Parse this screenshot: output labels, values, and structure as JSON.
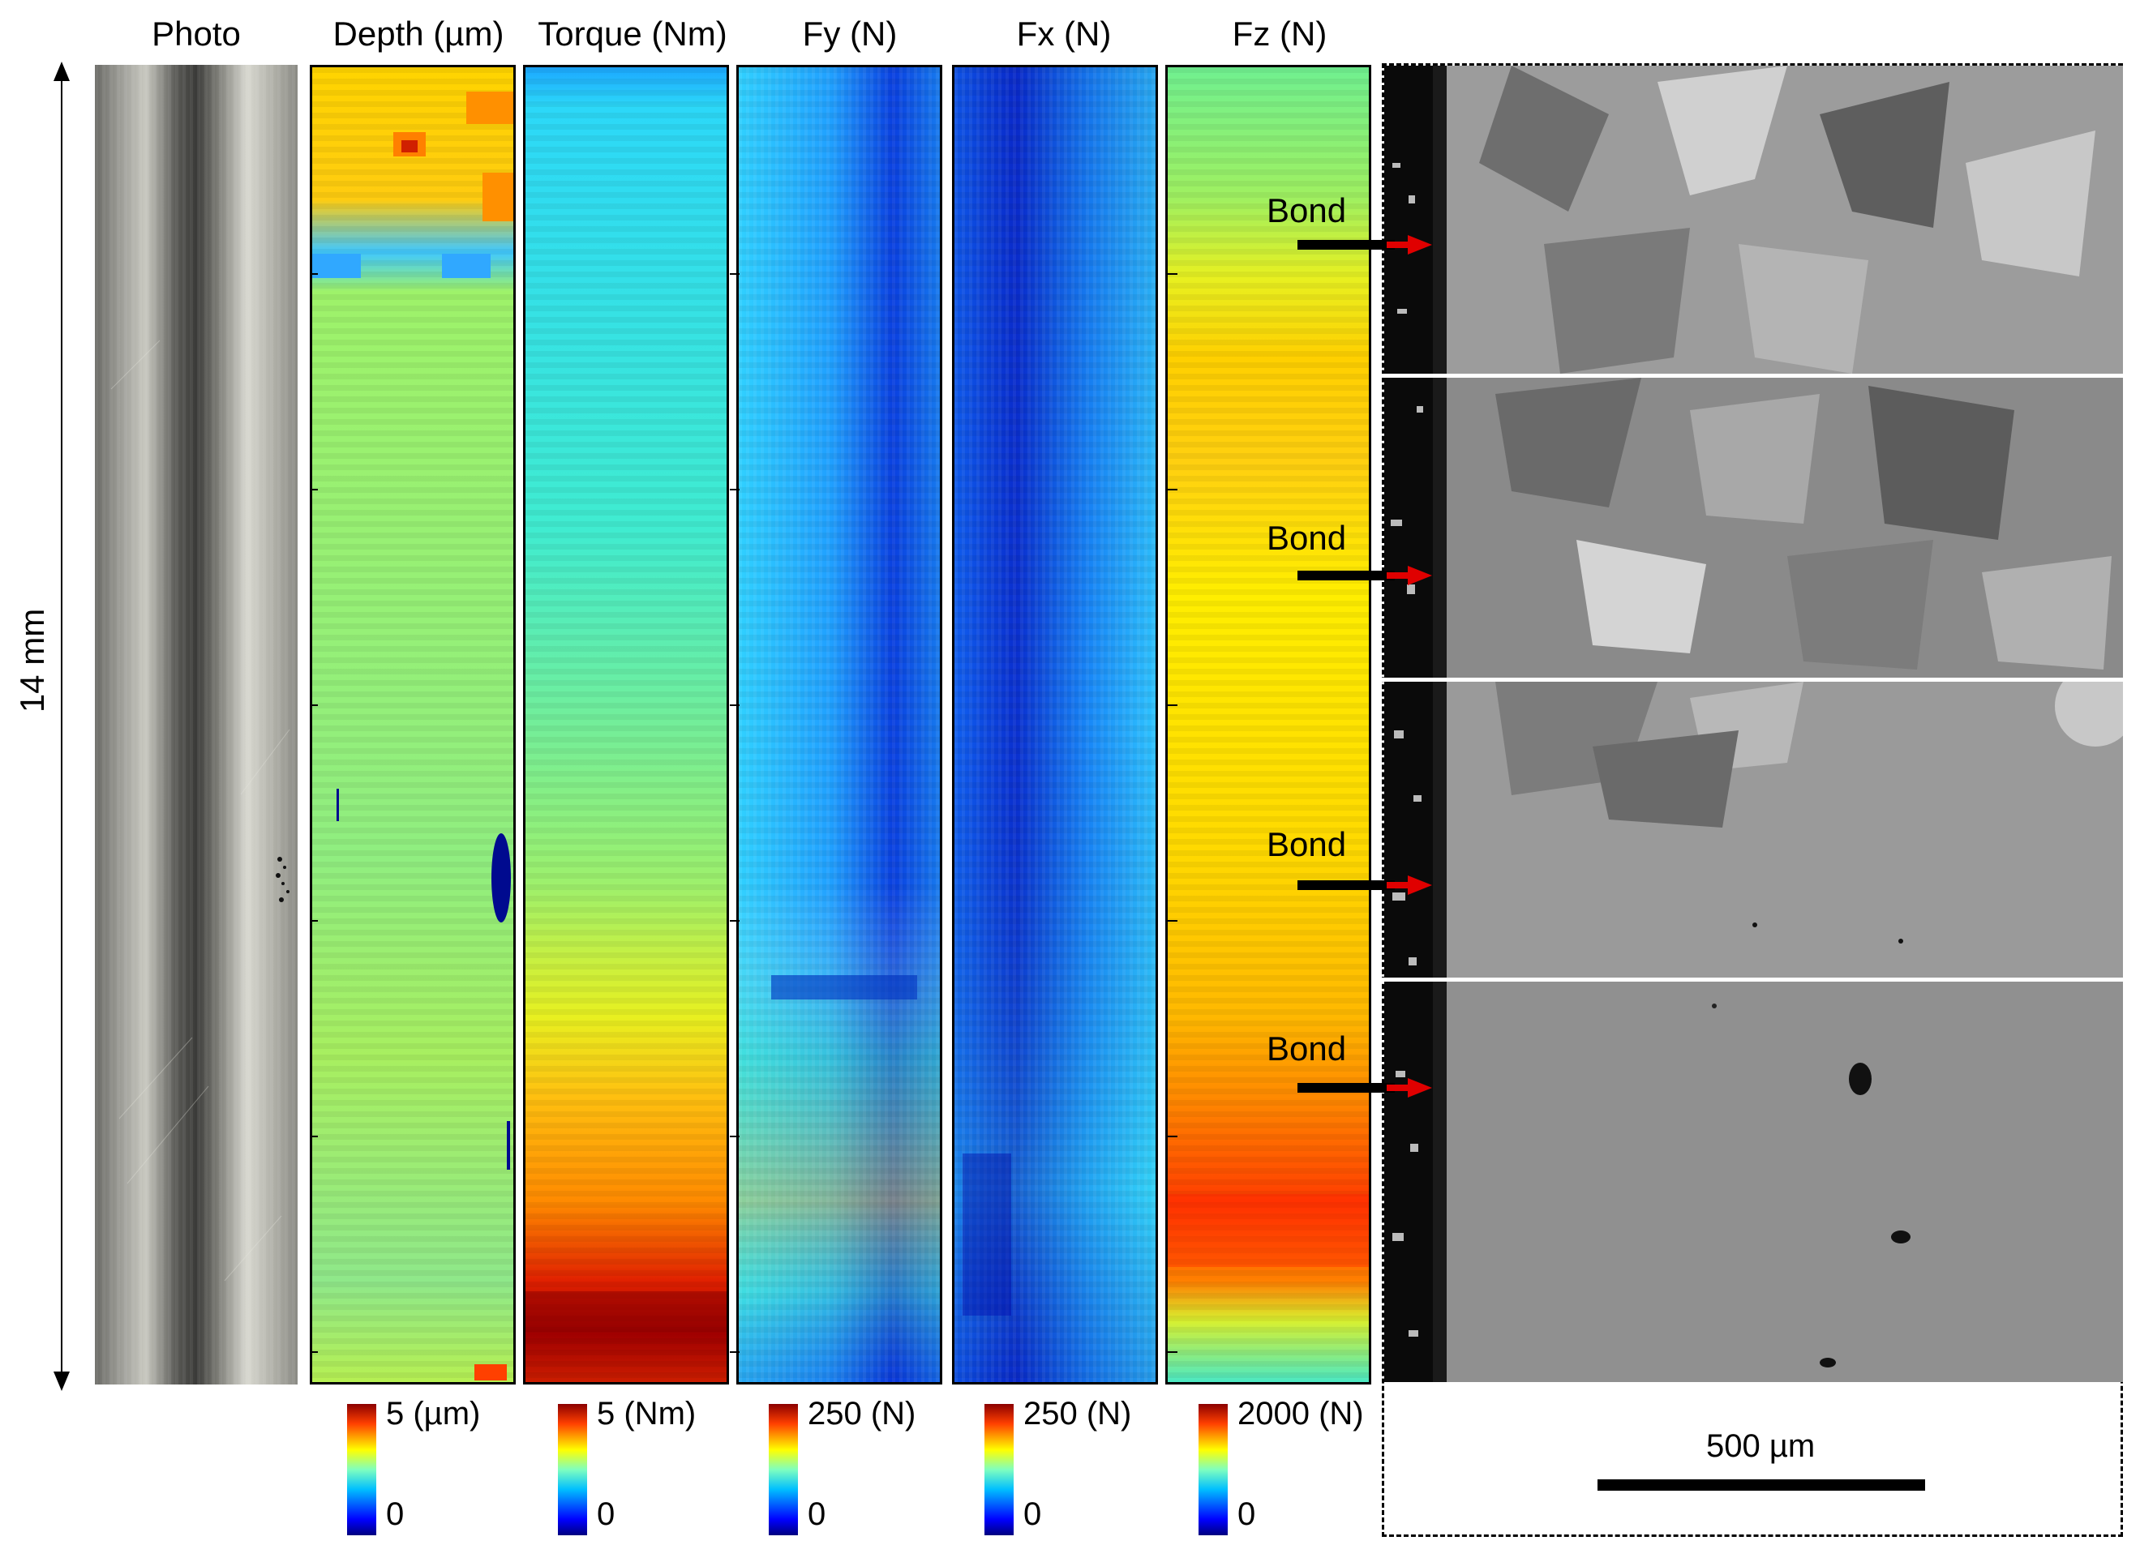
{
  "figure": {
    "titles": {
      "photo": "Photo",
      "depth": "Depth (µm)",
      "torque": "Torque (Nm)",
      "fy": "Fy (N)",
      "fx": "Fx (N)",
      "fz": "Fz (N)"
    },
    "length_label": "14 mm",
    "colorbars": {
      "depth": {
        "max": "5 (µm)",
        "min": "0"
      },
      "torque": {
        "max": "5 (Nm)",
        "min": "0"
      },
      "fy": {
        "max": "250 (N)",
        "min": "0"
      },
      "fx": {
        "max": "250 (N)",
        "min": "0"
      },
      "fz": {
        "max": "2000 (N)",
        "min": "0"
      }
    },
    "bond_labels": [
      "Bond",
      "Bond",
      "Bond",
      "Bond"
    ],
    "scale_bar": "500 µm",
    "colors": {
      "arrow_black": "#000000",
      "arrow_red": "#e00000",
      "colormap": "jet"
    }
  }
}
